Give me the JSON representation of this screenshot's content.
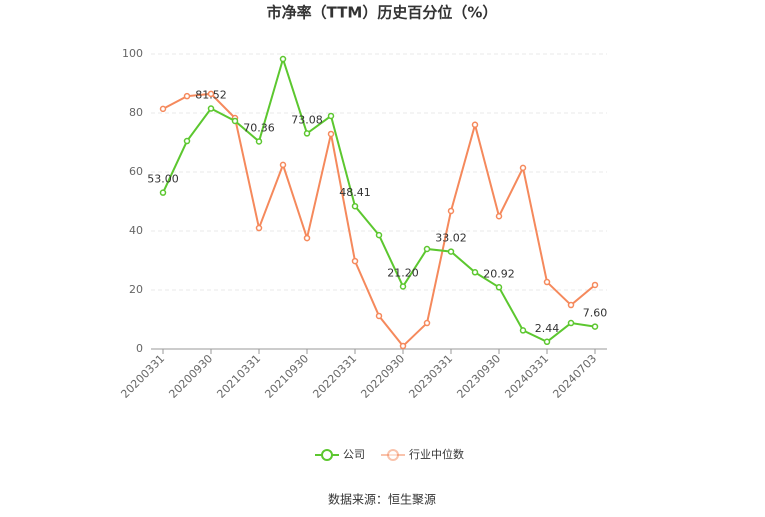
{
  "chart_data": {
    "type": "line",
    "title": "市净率（TTM）历史百分位（%）",
    "categories": [
      "20200331",
      null,
      "20200930",
      null,
      "20210331",
      null,
      "20210930",
      null,
      "20220331",
      null,
      "20220930",
      null,
      "20230331",
      null,
      "20230930",
      null,
      "20240331",
      null,
      "20240703"
    ],
    "series": [
      {
        "name": "公司",
        "color": "#5cc72f",
        "values": [
          53.0,
          70.5,
          81.52,
          77.3,
          70.36,
          98.3,
          73.08,
          79.0,
          48.41,
          38.6,
          21.2,
          33.9,
          33.02,
          26.0,
          20.92,
          6.3,
          2.44,
          8.8,
          7.6
        ],
        "value_labels": [
          "53.00",
          null,
          "81.52",
          null,
          "70.36",
          null,
          "73.08",
          null,
          "48.41",
          null,
          "21.20",
          null,
          "33.02",
          null,
          "20.92",
          null,
          "2.44",
          null,
          "7.60"
        ]
      },
      {
        "name": "行业中位数",
        "color": "#f5895c",
        "values": [
          81.4,
          85.7,
          86.5,
          78.3,
          41.0,
          62.4,
          37.6,
          72.9,
          29.8,
          11.2,
          1.0,
          8.8,
          46.8,
          76.0,
          45.0,
          61.4,
          22.7,
          14.9,
          21.7
        ]
      }
    ],
    "ylim": [
      0,
      100
    ],
    "yticks": [
      0,
      20,
      40,
      60,
      80,
      100
    ],
    "grid": true,
    "source": "数据来源：恒生聚源"
  }
}
